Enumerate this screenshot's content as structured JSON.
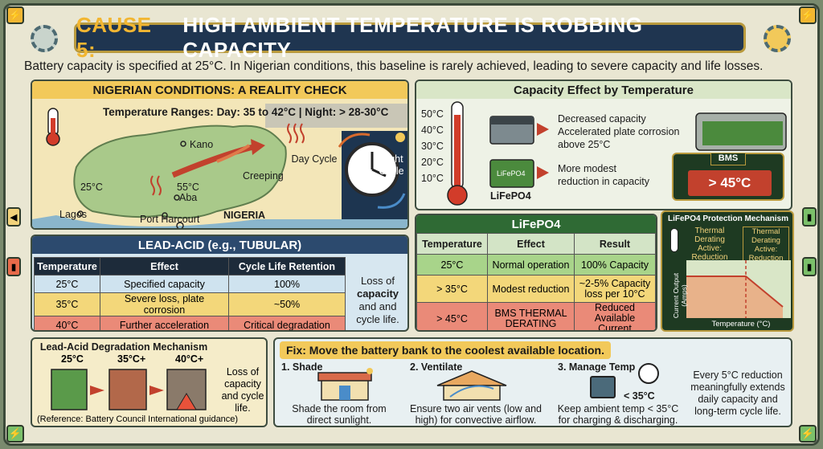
{
  "title": {
    "accent": "CAUSE 5:",
    "rest": "HIGH AMBIENT TEMPERATURE IS ROBBING CAPACITY"
  },
  "intro": "Battery capacity is specified at 25°C. In Nigerian conditions, this baseline is rarely achieved, leading to severe capacity and life losses.",
  "nigeria": {
    "heading": "NIGERIAN CONDITIONS: A REALITY CHECK",
    "ranges_label": "Temperature Ranges:",
    "ranges_value": "Day: 35 to 42°C | Night: > 28-30°C",
    "cities": [
      "Kano",
      "Aba",
      "Lagos",
      "Port Harcourt"
    ],
    "country": "NIGERIA",
    "temp_south": "25°C",
    "temp_hot": "55°C",
    "creeping": "Creeping",
    "day_cycle": "Day Cycle",
    "night_cycle": "Night Cycle"
  },
  "capacity": {
    "heading": "Capacity Effect by Temperature",
    "thermo_ticks": [
      "50°C",
      "40°C",
      "30°C",
      "20°C",
      "10°C"
    ],
    "lead_effects": [
      "Decreased capacity",
      "Accelerated plate corrosion",
      "above 25°C"
    ],
    "lifepo4_effects": [
      "More modest",
      "reduction in capacity"
    ],
    "lifepo4_label": "LiFePO4",
    "battery_badge": "LiFePO4",
    "bms_label": "BMS",
    "bms_reading": "> 45°C"
  },
  "leadacid": {
    "heading": "LEAD-ACID (e.g., TUBULAR)",
    "columns": [
      "Temperature",
      "Effect",
      "Cycle Life Retention"
    ],
    "rows": [
      [
        "25°C",
        "Specified capacity",
        "100%"
      ],
      [
        "35°C",
        "Severe loss, plate corrosion",
        "~50%"
      ],
      [
        "40°C",
        "Further acceleration",
        "Critical degradation"
      ]
    ],
    "note_pre": "Loss of",
    "note_bold": "capacity",
    "note_post": "and and cycle life."
  },
  "lifepo4": {
    "heading": "LiFePO4",
    "columns": [
      "Temperature",
      "Effect",
      "Result"
    ],
    "rows": [
      [
        "25°C",
        "Normal operation",
        "100% Capacity"
      ],
      [
        "> 35°C",
        "Modest reduction",
        "~2-5% Capacity loss per 10°C"
      ],
      [
        "> 45°C",
        "BMS THERMAL DERATING",
        "Reduced Available Current"
      ]
    ]
  },
  "bms": {
    "heading": "LiFePO4 Protection Mechanism",
    "derating_left": "Thermal Derating Active: Reduction",
    "derating_right": "Thermal Derating Active: Reduction",
    "y_axis": "Current Output (Amps)",
    "x_axis": "Temperature (°C)"
  },
  "degrade": {
    "heading": "Lead-Acid Degradation Mechanism",
    "temps": [
      "25°C",
      "35°C+",
      "40°C+"
    ],
    "note": "Loss of capacity and cycle life.",
    "reference": "(Reference: Battery Council International guidance)"
  },
  "fix": {
    "heading": "Fix: Move the battery bank to the coolest available location.",
    "steps": [
      {
        "title": "1. Shade",
        "text": "Shade the room from direct sunlight."
      },
      {
        "title": "2. Ventilate",
        "text": "Ensure two air vents (low and high) for convective airflow."
      },
      {
        "title": "3. Manage Temp",
        "text": "Keep ambient temp < 35°C for charging & discharging.",
        "badge": "< 35°C"
      }
    ],
    "summary": "Every 5°C reduction meaningfully extends daily capacity and long-term cycle life."
  },
  "colors": {
    "title_bg": "#1f3550",
    "accent": "#f2b632",
    "lead_head": "#2c4a6e",
    "lifepo4_head": "#2f6a34",
    "hot": "#ea8a78",
    "warm": "#f3d77a"
  }
}
